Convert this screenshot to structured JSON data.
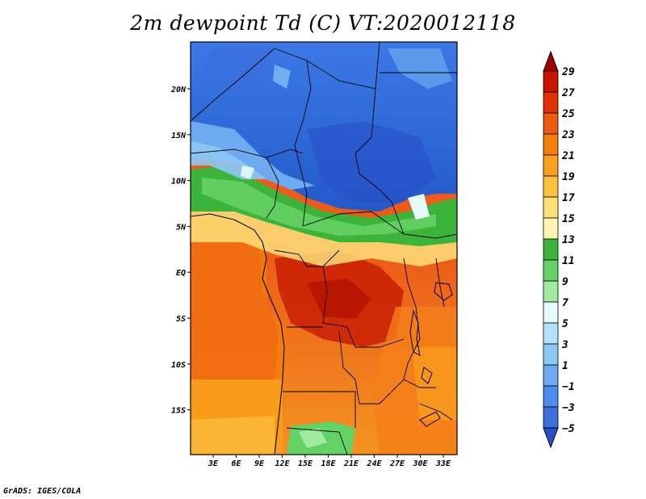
{
  "title": "2m dewpoint Td (C) VT:2020012118",
  "credit": "GrADS: IGES/COLA",
  "map": {
    "lat_labels": [
      "20N",
      "15N",
      "10N",
      "5N",
      "EQ",
      "5S",
      "10S",
      "15S"
    ],
    "lon_labels": [
      "3E",
      "6E",
      "9E",
      "12E",
      "15E",
      "18E",
      "21E",
      "24E",
      "27E",
      "30E",
      "33E"
    ],
    "field": "2m dewpoint",
    "units": "C"
  },
  "colorbar": {
    "labels": [
      "29",
      "27",
      "25",
      "23",
      "21",
      "19",
      "17",
      "15",
      "13",
      "11",
      "9",
      "7",
      "5",
      "3",
      "1",
      "−1",
      "−3",
      "−5"
    ],
    "colors": [
      "#a00000",
      "#c81400",
      "#e03200",
      "#f05a10",
      "#f57d0a",
      "#f9a01e",
      "#fcc040",
      "#fde07a",
      "#fff5b0",
      "#3cb43c",
      "#64d264",
      "#a0eba0",
      "#e6faff",
      "#b4e1fa",
      "#8cc8f5",
      "#6eaaf0",
      "#508cf0",
      "#3c6edc",
      "#2850c8"
    ]
  }
}
